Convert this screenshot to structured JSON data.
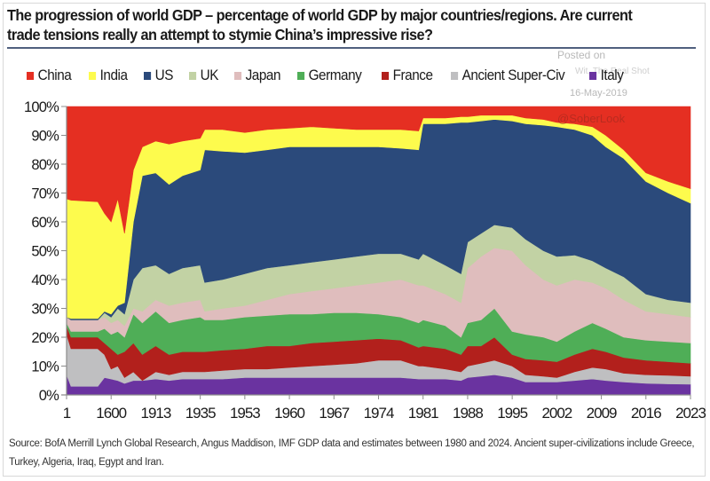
{
  "chart_data": {
    "type": "area",
    "stacked": true,
    "normalized": true,
    "title": "The progression of world GDP – percentage of world GDP by major countries/regions. Are current trade tensions really an attempt to stymie China’s impressive rise?",
    "xlabel": "",
    "ylabel": "",
    "ylim": [
      0,
      100
    ],
    "y_ticks": [
      "0%",
      "10%",
      "20%",
      "30%",
      "40%",
      "50%",
      "60%",
      "70%",
      "80%",
      "90%",
      "100%"
    ],
    "x_tick_labels": [
      "1",
      "1600",
      "1913",
      "1935",
      "1953",
      "1960",
      "1967",
      "1974",
      "1981",
      "1988",
      "1995",
      "2002",
      "2009",
      "2016",
      "2023"
    ],
    "x_index": [
      0.0,
      0.1,
      0.7,
      0.85,
      1.0,
      1.15,
      1.3,
      1.5,
      1.7,
      2.0,
      2.3,
      2.6,
      3.0,
      3.1,
      3.5,
      4.0,
      4.5,
      5.0,
      5.5,
      6.0,
      6.5,
      7.0,
      7.5,
      7.9,
      8.0,
      8.5,
      8.85,
      9.0,
      9.3,
      9.6,
      10.0,
      10.3,
      10.7,
      11.0,
      11.4,
      11.8,
      12.1,
      12.5,
      13.0,
      13.5,
      14.0
    ],
    "legend_position": "top",
    "grid": false,
    "series": [
      {
        "name": "Italy",
        "color": "#6a33a0",
        "values": [
          7,
          3,
          3,
          6,
          5.5,
          5,
          4,
          5,
          5,
          5.5,
          5,
          5.5,
          5.5,
          5.5,
          5.5,
          6,
          6,
          6,
          6,
          6,
          6,
          6,
          6,
          5.5,
          5.5,
          5.5,
          5,
          6,
          6.5,
          7,
          6,
          4.5,
          4.5,
          4.5,
          5,
          5.5,
          5,
          4.5,
          4,
          3.8,
          3.7
        ]
      },
      {
        "name": "Ancient Super-Civ",
        "color": "#bfbfc1",
        "values": [
          14,
          13,
          13,
          8,
          3.5,
          5,
          2,
          3,
          0,
          2.5,
          2,
          2.5,
          2.5,
          2.5,
          3,
          3,
          3,
          3.5,
          4,
          4.5,
          5,
          6,
          6,
          4.5,
          4.5,
          3.5,
          3,
          4,
          4.5,
          5,
          4,
          2.5,
          2,
          1.5,
          3,
          4,
          4,
          3,
          3,
          3,
          2.8
        ]
      },
      {
        "name": "France",
        "color": "#b2201c",
        "values": [
          3,
          4,
          4,
          4,
          7,
          4,
          9,
          10,
          9,
          9,
          7,
          7,
          7,
          7,
          7,
          7,
          8,
          7.5,
          8,
          8,
          8,
          7.5,
          7,
          6.5,
          7,
          7,
          6,
          7,
          6,
          8,
          4,
          5.5,
          5.5,
          5.5,
          6,
          6.5,
          6,
          5.5,
          5,
          4.7,
          4.5
        ]
      },
      {
        "name": "Germany",
        "color": "#4fae57",
        "values": [
          1,
          2,
          2,
          5,
          5,
          8,
          5,
          10,
          11,
          12,
          11,
          11,
          12,
          11,
          10.5,
          11,
          10.5,
          11,
          10,
          10,
          9.5,
          8.5,
          8,
          8.5,
          9,
          8,
          6,
          8,
          9,
          10,
          8,
          8.5,
          8,
          7,
          8,
          9,
          8,
          7,
          7,
          7,
          7
        ]
      },
      {
        "name": "Japan",
        "color": "#dfbdbd",
        "values": [
          2,
          4,
          4,
          4,
          4,
          4,
          4,
          2,
          4,
          4,
          6,
          6,
          6,
          3,
          4,
          4,
          5.5,
          7,
          8,
          8.5,
          9.5,
          11,
          13,
          13,
          12,
          11,
          12,
          19,
          22,
          21,
          28,
          24,
          20,
          19.5,
          18,
          14,
          14,
          13,
          10,
          9.5,
          9
        ]
      },
      {
        "name": "UK",
        "color": "#c2d2a4",
        "values": [
          0,
          0,
          0,
          1.5,
          2,
          4,
          4,
          10,
          15,
          12,
          11,
          12,
          12,
          10,
          10,
          11,
          11,
          10,
          10,
          10,
          10,
          10,
          9,
          9,
          11,
          10,
          10,
          9,
          8,
          8,
          8,
          9,
          10,
          10,
          8.5,
          7.5,
          7,
          8,
          6,
          5,
          5
        ]
      },
      {
        "name": "US",
        "color": "#2b4a7b",
        "values": [
          0,
          0.5,
          0.5,
          0.5,
          1,
          1,
          4,
          20,
          32,
          32,
          31,
          32,
          33,
          46,
          44.5,
          42,
          41,
          41,
          40,
          39,
          38,
          37,
          36.5,
          38,
          45,
          49,
          52.5,
          41.5,
          39,
          36.5,
          37,
          40,
          43.5,
          45,
          43.5,
          43.5,
          42,
          41,
          39,
          37,
          34.5
        ]
      },
      {
        "name": "India",
        "color": "#fdfb4d",
        "values": [
          41,
          41,
          40.5,
          34,
          32,
          37,
          24,
          18,
          10,
          11,
          14,
          12,
          11,
          7,
          7.5,
          7,
          7,
          6.5,
          7,
          6.5,
          6,
          6,
          6.5,
          6.5,
          2,
          2,
          2,
          2,
          2,
          1.5,
          2,
          2,
          2,
          1.5,
          2,
          3,
          4,
          3,
          3,
          4,
          5
        ]
      },
      {
        "name": "China",
        "color": "#e52f22",
        "values": [
          32,
          32.5,
          33,
          37,
          40,
          32,
          44,
          22,
          14,
          12,
          13,
          12,
          11,
          8,
          8,
          9,
          8,
          7.5,
          7,
          7.5,
          8,
          8,
          8,
          8.5,
          4,
          4,
          3.5,
          3.5,
          3,
          3,
          3,
          4,
          4.5,
          5.5,
          6,
          7,
          10,
          15,
          23,
          26,
          28.5
        ]
      }
    ]
  },
  "legend": [
    {
      "label": "China",
      "color": "#e52f22"
    },
    {
      "label": "India",
      "color": "#fdfb4d"
    },
    {
      "label": "US",
      "color": "#2b4a7b"
    },
    {
      "label": "UK",
      "color": "#c2d2a4"
    },
    {
      "label": "Japan",
      "color": "#dfbdbd"
    },
    {
      "label": "Germany",
      "color": "#4fae57"
    },
    {
      "label": "France",
      "color": "#b2201c"
    },
    {
      "label": "Ancient Super-Civ",
      "color": "#bfbfc1"
    },
    {
      "label": "Italy",
      "color": "#6a33a0"
    }
  ],
  "watermark": {
    "posted": "Posted on",
    "site": "Wit, The Real Shot",
    "date": "16-May-2019",
    "handle": "@SoberLook"
  },
  "source": "Source:  BofA Merrill Lynch Global Research, Angus Maddison,  IMF GDP data and estimates between 1980  and 2024.  Ancient super-civilizations include  Greece, Turkey, Algeria, Iraq, Egypt and Iran."
}
